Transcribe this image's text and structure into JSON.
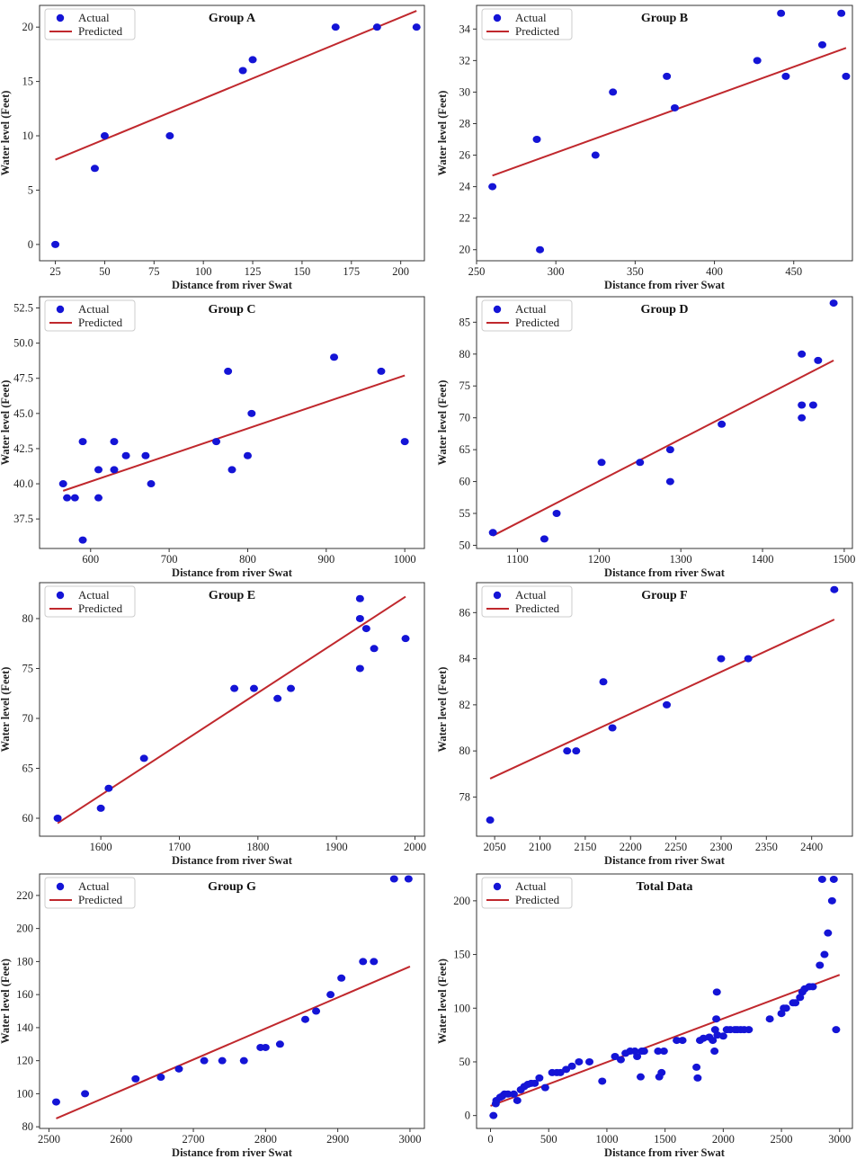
{
  "colors": {
    "actual": "#1414d6",
    "predicted": "#c0282d",
    "axis": "#333333"
  },
  "legend": {
    "actual_label": "Actual",
    "predicted_label": "Predicted"
  },
  "chart_data": [
    {
      "type": "scatter",
      "title": "Group A",
      "xlabel": "Distance from river Swat",
      "ylabel": "Water level (Feet)",
      "xlim": [
        17,
        212
      ],
      "ylim": [
        -1.5,
        22
      ],
      "xticks": [
        25,
        50,
        75,
        100,
        125,
        150,
        175,
        200
      ],
      "yticks": [
        0,
        5,
        10,
        15,
        20
      ],
      "actual": [
        [
          25,
          0
        ],
        [
          45,
          7
        ],
        [
          50,
          10
        ],
        [
          83,
          10
        ],
        [
          120,
          16
        ],
        [
          125,
          17
        ],
        [
          167,
          20
        ],
        [
          188,
          20
        ],
        [
          208,
          20
        ]
      ],
      "predicted": [
        [
          25,
          7.8
        ],
        [
          208,
          21.5
        ]
      ]
    },
    {
      "type": "scatter",
      "title": "Group B",
      "xlabel": "Distance from river Swat",
      "ylabel": "Water level (Feet)",
      "xlim": [
        250,
        487
      ],
      "ylim": [
        19.3,
        35.5
      ],
      "xticks": [
        250,
        300,
        350,
        400,
        450
      ],
      "yticks": [
        20,
        22,
        24,
        26,
        28,
        30,
        32,
        34
      ],
      "actual": [
        [
          260,
          24
        ],
        [
          288,
          27
        ],
        [
          290,
          20
        ],
        [
          325,
          26
        ],
        [
          336,
          30
        ],
        [
          370,
          31
        ],
        [
          375,
          29
        ],
        [
          427,
          32
        ],
        [
          442,
          35
        ],
        [
          445,
          31
        ],
        [
          468,
          33
        ],
        [
          480,
          35
        ],
        [
          483,
          31
        ]
      ],
      "predicted": [
        [
          260,
          24.7
        ],
        [
          483,
          32.8
        ]
      ]
    },
    {
      "type": "scatter",
      "title": "Group C",
      "xlabel": "Distance from river Swat",
      "ylabel": "Water level (Feet)",
      "xlim": [
        535,
        1025
      ],
      "ylim": [
        35.4,
        53.3
      ],
      "xticks": [
        600,
        700,
        800,
        900,
        1000
      ],
      "yticks": [
        37.5,
        40.0,
        42.5,
        45.0,
        47.5,
        50.0,
        52.5
      ],
      "ytick_labels": [
        "37.5",
        "40.0",
        "42.5",
        "45.0",
        "47.5",
        "50.0",
        "52.5"
      ],
      "actual": [
        [
          565,
          40
        ],
        [
          570,
          39
        ],
        [
          580,
          39
        ],
        [
          590,
          43
        ],
        [
          590,
          36
        ],
        [
          610,
          39
        ],
        [
          610,
          41
        ],
        [
          630,
          41
        ],
        [
          630,
          43
        ],
        [
          645,
          42
        ],
        [
          670,
          42
        ],
        [
          677,
          40
        ],
        [
          760,
          43
        ],
        [
          775,
          48
        ],
        [
          780,
          41
        ],
        [
          800,
          42
        ],
        [
          805,
          45
        ],
        [
          910,
          49
        ],
        [
          970,
          48
        ],
        [
          1000,
          43
        ]
      ],
      "predicted": [
        [
          565,
          39.5
        ],
        [
          1000,
          47.7
        ]
      ]
    },
    {
      "type": "scatter",
      "title": "Group D",
      "xlabel": "Distance from river Swat",
      "ylabel": "Water level (Feet)",
      "xlim": [
        1050,
        1510
      ],
      "ylim": [
        49.5,
        89
      ],
      "xticks": [
        1100,
        1200,
        1300,
        1400,
        1500
      ],
      "yticks": [
        50,
        55,
        60,
        65,
        70,
        75,
        80,
        85
      ],
      "actual": [
        [
          1070,
          52
        ],
        [
          1133,
          51
        ],
        [
          1148,
          55
        ],
        [
          1203,
          63
        ],
        [
          1250,
          63
        ],
        [
          1287,
          65
        ],
        [
          1287,
          60
        ],
        [
          1350,
          69
        ],
        [
          1448,
          80
        ],
        [
          1448,
          72
        ],
        [
          1448,
          70
        ],
        [
          1462,
          72
        ],
        [
          1468,
          79
        ],
        [
          1487,
          88
        ]
      ],
      "predicted": [
        [
          1070,
          51.5
        ],
        [
          1487,
          79
        ]
      ]
    },
    {
      "type": "scatter",
      "title": "Group E",
      "xlabel": "Distance from river Swat",
      "ylabel": "Water level (Feet)",
      "xlim": [
        1522,
        2012
      ],
      "ylim": [
        58.2,
        83.6
      ],
      "xticks": [
        1600,
        1700,
        1800,
        1900,
        2000
      ],
      "yticks": [
        60,
        65,
        70,
        75,
        80
      ],
      "actual": [
        [
          1545,
          60
        ],
        [
          1600,
          61
        ],
        [
          1610,
          63
        ],
        [
          1655,
          66
        ],
        [
          1770,
          73
        ],
        [
          1795,
          73
        ],
        [
          1825,
          72
        ],
        [
          1842,
          73
        ],
        [
          1930,
          82
        ],
        [
          1930,
          80
        ],
        [
          1930,
          75
        ],
        [
          1938,
          79
        ],
        [
          1948,
          77
        ],
        [
          1988,
          78
        ]
      ],
      "predicted": [
        [
          1545,
          59.5
        ],
        [
          1988,
          82.2
        ]
      ]
    },
    {
      "type": "scatter",
      "title": "Group F",
      "xlabel": "Distance from river Swat",
      "ylabel": "Water level (Feet)",
      "xlim": [
        2030,
        2445
      ],
      "ylim": [
        76.3,
        87.3
      ],
      "xticks": [
        2050,
        2100,
        2150,
        2200,
        2250,
        2300,
        2350,
        2400
      ],
      "yticks": [
        78,
        80,
        82,
        84,
        86
      ],
      "actual": [
        [
          2045,
          77
        ],
        [
          2130,
          80
        ],
        [
          2140,
          80
        ],
        [
          2170,
          83
        ],
        [
          2180,
          81
        ],
        [
          2240,
          82
        ],
        [
          2300,
          84
        ],
        [
          2330,
          84
        ],
        [
          2425,
          87
        ]
      ],
      "predicted": [
        [
          2045,
          78.8
        ],
        [
          2425,
          85.7
        ]
      ]
    },
    {
      "type": "scatter",
      "title": "Group G",
      "xlabel": "Distance from river Swat",
      "ylabel": "Water level (Feet)",
      "xlim": [
        2487,
        3020
      ],
      "ylim": [
        79,
        233
      ],
      "xticks": [
        2500,
        2600,
        2700,
        2800,
        2900,
        3000
      ],
      "yticks": [
        80,
        100,
        120,
        140,
        160,
        180,
        200,
        220
      ],
      "actual": [
        [
          2510,
          95
        ],
        [
          2550,
          100
        ],
        [
          2620,
          109
        ],
        [
          2655,
          110
        ],
        [
          2680,
          115
        ],
        [
          2715,
          120
        ],
        [
          2740,
          120
        ],
        [
          2770,
          120
        ],
        [
          2793,
          128
        ],
        [
          2800,
          128
        ],
        [
          2820,
          130
        ],
        [
          2855,
          145
        ],
        [
          2870,
          150
        ],
        [
          2890,
          160
        ],
        [
          2905,
          170
        ],
        [
          2935,
          180
        ],
        [
          2950,
          180
        ],
        [
          2978,
          230
        ],
        [
          2998,
          230
        ]
      ],
      "predicted": [
        [
          2510,
          85
        ],
        [
          3000,
          177
        ]
      ]
    },
    {
      "type": "scatter",
      "title": "Total Data",
      "xlabel": "Distance from river Swat",
      "ylabel": "Water level (Feet)",
      "xlim": [
        -120,
        3110
      ],
      "ylim": [
        -12,
        225
      ],
      "xticks": [
        0,
        500,
        1000,
        1500,
        2000,
        2500,
        3000
      ],
      "yticks": [
        0,
        50,
        100,
        150,
        200
      ],
      "actual": [
        [
          25,
          0
        ],
        [
          45,
          11
        ],
        [
          50,
          14
        ],
        [
          83,
          17
        ],
        [
          100,
          18
        ],
        [
          120,
          20
        ],
        [
          150,
          20
        ],
        [
          200,
          20
        ],
        [
          230,
          14
        ],
        [
          260,
          24
        ],
        [
          290,
          27
        ],
        [
          320,
          29
        ],
        [
          350,
          30
        ],
        [
          380,
          30
        ],
        [
          420,
          35
        ],
        [
          470,
          26
        ],
        [
          530,
          40
        ],
        [
          570,
          40
        ],
        [
          600,
          40
        ],
        [
          650,
          43
        ],
        [
          700,
          46
        ],
        [
          760,
          50
        ],
        [
          850,
          50
        ],
        [
          960,
          32
        ],
        [
          1070,
          55
        ],
        [
          1120,
          52
        ],
        [
          1160,
          58
        ],
        [
          1200,
          60
        ],
        [
          1240,
          60
        ],
        [
          1260,
          55
        ],
        [
          1290,
          36
        ],
        [
          1300,
          60
        ],
        [
          1320,
          60
        ],
        [
          1440,
          60
        ],
        [
          1450,
          36
        ],
        [
          1470,
          40
        ],
        [
          1490,
          60
        ],
        [
          1600,
          70
        ],
        [
          1650,
          70
        ],
        [
          1770,
          45
        ],
        [
          1780,
          35
        ],
        [
          1800,
          70
        ],
        [
          1830,
          72
        ],
        [
          1880,
          73
        ],
        [
          1910,
          70
        ],
        [
          1925,
          60
        ],
        [
          1930,
          80
        ],
        [
          1940,
          90
        ],
        [
          1945,
          115
        ],
        [
          1950,
          75
        ],
        [
          2000,
          74
        ],
        [
          2030,
          80
        ],
        [
          2060,
          80
        ],
        [
          2100,
          80
        ],
        [
          2120,
          80
        ],
        [
          2150,
          80
        ],
        [
          2180,
          80
        ],
        [
          2220,
          80
        ],
        [
          2400,
          90
        ],
        [
          2500,
          95
        ],
        [
          2520,
          100
        ],
        [
          2540,
          100
        ],
        [
          2600,
          105
        ],
        [
          2620,
          105
        ],
        [
          2660,
          110
        ],
        [
          2680,
          115
        ],
        [
          2700,
          118
        ],
        [
          2740,
          120
        ],
        [
          2770,
          120
        ],
        [
          2830,
          140
        ],
        [
          2870,
          150
        ],
        [
          2900,
          170
        ],
        [
          2935,
          200
        ],
        [
          2950,
          220
        ],
        [
          2970,
          80
        ],
        [
          2850,
          220
        ]
      ],
      "predicted": [
        [
          0,
          9
        ],
        [
          3000,
          131
        ]
      ]
    }
  ]
}
